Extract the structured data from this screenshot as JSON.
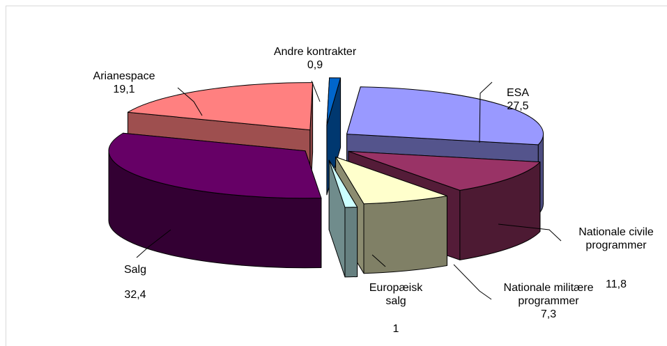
{
  "chart_data": {
    "type": "pie",
    "title": "",
    "categories": [
      "ESA",
      "Nationale civile programmer",
      "Nationale militære programmer",
      "Europæisk salg",
      "Salg",
      "Arianespace",
      "Andre kontrakter"
    ],
    "values": [
      27.5,
      11.8,
      7.3,
      1,
      32.4,
      19.1,
      0.9
    ],
    "value_labels": [
      "27,5",
      "11,8",
      "7,3",
      "1",
      "32,4",
      "19,1",
      "0,9"
    ],
    "label_lines": [
      [
        "ESA"
      ],
      [
        "Nationale civile",
        "programmer"
      ],
      [
        "Nationale militære",
        "programmer"
      ],
      [
        "Europæisk",
        "salg"
      ],
      [
        "Salg"
      ],
      [
        "Arianespace"
      ],
      [
        "Andre kontrakter"
      ]
    ],
    "colors": [
      "#9999FF",
      "#993366",
      "#FFFFCC",
      "#CCFFFF",
      "#660066",
      "#FF8080",
      "#0066CC"
    ],
    "style": "3d-exploded-pie",
    "legend": "none"
  }
}
